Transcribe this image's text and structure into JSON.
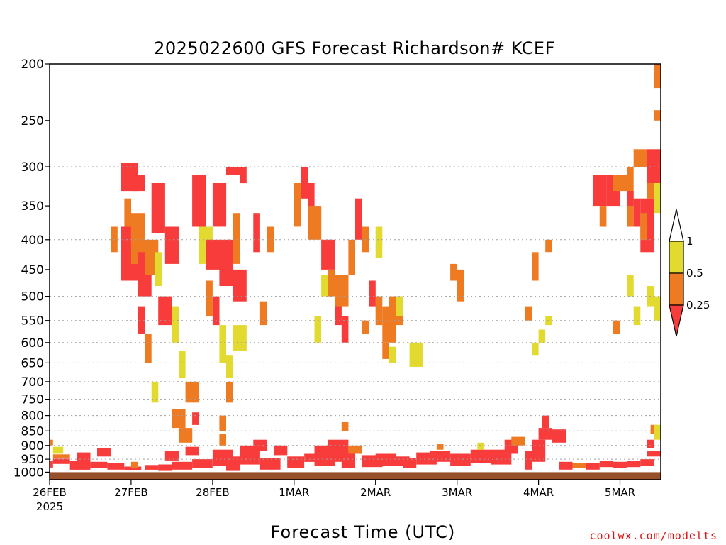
{
  "colors": {
    "red": "#f83c3c",
    "orange": "#ee7a22",
    "yellow": "#e2da2e",
    "ground": "#96502a",
    "grid": "#a0a0a0",
    "credit": "#e01010"
  },
  "chart_data": {
    "type": "heatmap",
    "title": "2025022600 GFS Forecast Richardson# KCEF",
    "xlabel": "Forecast Time (UTC)",
    "ylabel": "",
    "source": "coolwx.com/modelts",
    "x_ticks": [
      {
        "hour": 0,
        "label": "26FEB",
        "sublabel": "2025"
      },
      {
        "hour": 24,
        "label": "27FEB",
        "sublabel": ""
      },
      {
        "hour": 48,
        "label": "28FEB",
        "sublabel": ""
      },
      {
        "hour": 72,
        "label": "1MAR",
        "sublabel": ""
      },
      {
        "hour": 96,
        "label": "2MAR",
        "sublabel": ""
      },
      {
        "hour": 120,
        "label": "3MAR",
        "sublabel": ""
      },
      {
        "hour": 144,
        "label": "4MAR",
        "sublabel": ""
      },
      {
        "hour": 168,
        "label": "5MAR",
        "sublabel": ""
      }
    ],
    "x_range_hours": [
      0,
      180
    ],
    "y_axis": "pressure (hPa), reversed",
    "y_range": [
      1030,
      200
    ],
    "y_ticks": [
      200,
      250,
      300,
      350,
      400,
      450,
      500,
      550,
      600,
      650,
      700,
      750,
      800,
      850,
      900,
      950,
      1000
    ],
    "y_gridlines": [
      300,
      400,
      500,
      550,
      600,
      650,
      700,
      750,
      800,
      850,
      900,
      950
    ],
    "grid": true,
    "legend": {
      "placement": "right",
      "levels": [
        {
          "label": "1",
          "value": 1
        },
        {
          "label": "0.5",
          "value": 0.5
        },
        {
          "label": "0.25",
          "value": 0.25
        }
      ],
      "bins": [
        {
          "range": "> 1",
          "color": "#ffffff"
        },
        {
          "range": "0.5 – 1",
          "color": "#e2da2e"
        },
        {
          "range": "0.25 – 0.5",
          "color": "#ee7a22"
        },
        {
          "range": "< 0.25",
          "color": "#f83c3c"
        }
      ]
    },
    "cells": [
      [
        0,
        0,
        982,
        956,
        "red"
      ],
      [
        1,
        6,
        968,
        948,
        "red"
      ],
      [
        1,
        6,
        945,
        932,
        "orange"
      ],
      [
        0,
        1,
        900,
        880,
        "orange"
      ],
      [
        1,
        4,
        930,
        905,
        "yellow"
      ],
      [
        6,
        12,
        990,
        955,
        "red"
      ],
      [
        8,
        12,
        955,
        925,
        "red"
      ],
      [
        12,
        17,
        985,
        960,
        "red"
      ],
      [
        14,
        18,
        940,
        910,
        "red"
      ],
      [
        17,
        22,
        990,
        965,
        "red"
      ],
      [
        22,
        27,
        992,
        978,
        "red"
      ],
      [
        24,
        26,
        985,
        960,
        "orange"
      ],
      [
        28,
        32,
        990,
        972,
        "red"
      ],
      [
        32,
        36,
        995,
        970,
        "red"
      ],
      [
        34,
        38,
        955,
        920,
        "red"
      ],
      [
        36,
        42,
        990,
        960,
        "red"
      ],
      [
        40,
        44,
        935,
        905,
        "red"
      ],
      [
        42,
        48,
        985,
        950,
        "red"
      ],
      [
        48,
        54,
        975,
        915,
        "red"
      ],
      [
        52,
        56,
        995,
        940,
        "red"
      ],
      [
        56,
        62,
        970,
        900,
        "red"
      ],
      [
        60,
        64,
        920,
        880,
        "red"
      ],
      [
        62,
        68,
        990,
        945,
        "red"
      ],
      [
        66,
        70,
        935,
        900,
        "red"
      ],
      [
        70,
        75,
        985,
        940,
        "red"
      ],
      [
        75,
        78,
        960,
        930,
        "red"
      ],
      [
        78,
        84,
        975,
        900,
        "red"
      ],
      [
        82,
        88,
        960,
        880,
        "red"
      ],
      [
        86,
        90,
        985,
        920,
        "red"
      ],
      [
        88,
        92,
        930,
        900,
        "orange"
      ],
      [
        92,
        98,
        980,
        935,
        "red"
      ],
      [
        96,
        102,
        975,
        930,
        "red"
      ],
      [
        100,
        106,
        975,
        940,
        "red"
      ],
      [
        104,
        108,
        985,
        945,
        "red"
      ],
      [
        108,
        114,
        970,
        925,
        "red"
      ],
      [
        112,
        118,
        960,
        920,
        "red"
      ],
      [
        114,
        116,
        915,
        895,
        "orange"
      ],
      [
        118,
        124,
        975,
        930,
        "red"
      ],
      [
        124,
        130,
        965,
        915,
        "red"
      ],
      [
        126,
        128,
        915,
        890,
        "yellow"
      ],
      [
        130,
        136,
        970,
        915,
        "red"
      ],
      [
        134,
        138,
        930,
        880,
        "red"
      ],
      [
        136,
        140,
        900,
        870,
        "orange"
      ],
      [
        140,
        142,
        990,
        920,
        "red"
      ],
      [
        142,
        146,
        960,
        880,
        "red"
      ],
      [
        144,
        148,
        880,
        840,
        "red"
      ],
      [
        145,
        147,
        840,
        800,
        "red"
      ],
      [
        148,
        152,
        890,
        845,
        "red"
      ],
      [
        150,
        154,
        990,
        960,
        "red"
      ],
      [
        154,
        158,
        985,
        965,
        "orange"
      ],
      [
        158,
        162,
        990,
        965,
        "red"
      ],
      [
        162,
        166,
        980,
        955,
        "red"
      ],
      [
        166,
        170,
        985,
        960,
        "red"
      ],
      [
        170,
        174,
        980,
        955,
        "red"
      ],
      [
        174,
        178,
        975,
        950,
        "red"
      ],
      [
        176,
        180,
        940,
        920,
        "red"
      ],
      [
        177,
        179,
        860,
        830,
        "orange"
      ],
      [
        178,
        180,
        880,
        830,
        "yellow"
      ],
      [
        176,
        178,
        910,
        880,
        "red"
      ],
      [
        21,
        26,
        330,
        295,
        "red"
      ],
      [
        24,
        28,
        330,
        310,
        "red"
      ],
      [
        22,
        24,
        400,
        340,
        "orange"
      ],
      [
        18,
        20,
        420,
        380,
        "orange"
      ],
      [
        21,
        26,
        470,
        380,
        "red"
      ],
      [
        24,
        28,
        440,
        360,
        "orange"
      ],
      [
        26,
        30,
        500,
        420,
        "red"
      ],
      [
        28,
        32,
        460,
        400,
        "orange"
      ],
      [
        26,
        28,
        580,
        520,
        "red"
      ],
      [
        28,
        30,
        650,
        580,
        "orange"
      ],
      [
        30,
        34,
        390,
        320,
        "red"
      ],
      [
        32,
        36,
        560,
        500,
        "red"
      ],
      [
        31,
        33,
        480,
        420,
        "yellow"
      ],
      [
        34,
        38,
        440,
        380,
        "red"
      ],
      [
        36,
        38,
        600,
        520,
        "yellow"
      ],
      [
        38,
        40,
        690,
        620,
        "yellow"
      ],
      [
        30,
        32,
        760,
        700,
        "yellow"
      ],
      [
        36,
        40,
        840,
        780,
        "orange"
      ],
      [
        38,
        42,
        890,
        840,
        "orange"
      ],
      [
        42,
        46,
        380,
        310,
        "red"
      ],
      [
        44,
        48,
        440,
        380,
        "yellow"
      ],
      [
        46,
        48,
        540,
        470,
        "orange"
      ],
      [
        48,
        50,
        560,
        500,
        "red"
      ],
      [
        50,
        54,
        480,
        400,
        "red"
      ],
      [
        50,
        52,
        650,
        560,
        "yellow"
      ],
      [
        52,
        54,
        760,
        700,
        "orange"
      ],
      [
        54,
        56,
        440,
        360,
        "orange"
      ],
      [
        54,
        58,
        510,
        450,
        "red"
      ],
      [
        52,
        56,
        310,
        300,
        "red"
      ],
      [
        56,
        58,
        320,
        300,
        "red"
      ],
      [
        48,
        52,
        380,
        320,
        "red"
      ],
      [
        46,
        50,
        450,
        400,
        "red"
      ],
      [
        50,
        52,
        850,
        800,
        "orange"
      ],
      [
        50,
        52,
        900,
        860,
        "orange"
      ],
      [
        60,
        62,
        420,
        360,
        "red"
      ],
      [
        62,
        64,
        560,
        510,
        "orange"
      ],
      [
        64,
        66,
        420,
        380,
        "orange"
      ],
      [
        54,
        58,
        620,
        560,
        "yellow"
      ],
      [
        52,
        54,
        690,
        630,
        "yellow"
      ],
      [
        40,
        44,
        760,
        700,
        "orange"
      ],
      [
        42,
        44,
        830,
        790,
        "red"
      ],
      [
        72,
        74,
        380,
        320,
        "orange"
      ],
      [
        74,
        76,
        340,
        300,
        "red"
      ],
      [
        76,
        78,
        360,
        320,
        "red"
      ],
      [
        76,
        80,
        400,
        350,
        "orange"
      ],
      [
        80,
        84,
        450,
        400,
        "red"
      ],
      [
        82,
        84,
        500,
        450,
        "orange"
      ],
      [
        84,
        86,
        560,
        500,
        "red"
      ],
      [
        84,
        88,
        520,
        460,
        "orange"
      ],
      [
        86,
        88,
        600,
        540,
        "red"
      ],
      [
        88,
        90,
        460,
        400,
        "orange"
      ],
      [
        90,
        92,
        400,
        340,
        "red"
      ],
      [
        92,
        94,
        420,
        380,
        "orange"
      ],
      [
        78,
        80,
        600,
        540,
        "yellow"
      ],
      [
        80,
        82,
        500,
        460,
        "yellow"
      ],
      [
        86,
        88,
        850,
        820,
        "orange"
      ],
      [
        96,
        98,
        560,
        500,
        "orange"
      ],
      [
        98,
        102,
        600,
        520,
        "orange"
      ],
      [
        100,
        104,
        560,
        500,
        "orange"
      ],
      [
        98,
        100,
        640,
        600,
        "orange"
      ],
      [
        100,
        102,
        650,
        610,
        "yellow"
      ],
      [
        102,
        104,
        540,
        500,
        "yellow"
      ],
      [
        96,
        98,
        430,
        380,
        "yellow"
      ],
      [
        92,
        94,
        580,
        550,
        "orange"
      ],
      [
        94,
        96,
        520,
        470,
        "red"
      ],
      [
        106,
        110,
        660,
        600,
        "yellow"
      ],
      [
        118,
        120,
        470,
        440,
        "orange"
      ],
      [
        120,
        122,
        510,
        450,
        "orange"
      ],
      [
        140,
        142,
        550,
        520,
        "orange"
      ],
      [
        142,
        144,
        470,
        420,
        "orange"
      ],
      [
        142,
        144,
        630,
        600,
        "yellow"
      ],
      [
        144,
        146,
        600,
        570,
        "yellow"
      ],
      [
        146,
        148,
        420,
        400,
        "orange"
      ],
      [
        146,
        148,
        560,
        540,
        "yellow"
      ],
      [
        160,
        164,
        350,
        310,
        "red"
      ],
      [
        162,
        164,
        380,
        350,
        "orange"
      ],
      [
        164,
        168,
        350,
        310,
        "red"
      ],
      [
        166,
        170,
        330,
        310,
        "orange"
      ],
      [
        170,
        172,
        380,
        300,
        "orange"
      ],
      [
        172,
        176,
        300,
        280,
        "orange"
      ],
      [
        174,
        178,
        420,
        340,
        "red"
      ],
      [
        176,
        178,
        340,
        300,
        "orange"
      ],
      [
        176,
        180,
        320,
        280,
        "red"
      ],
      [
        178,
        180,
        360,
        320,
        "yellow"
      ],
      [
        178,
        180,
        250,
        240,
        "orange"
      ],
      [
        178,
        180,
        220,
        200,
        "orange"
      ],
      [
        172,
        174,
        380,
        340,
        "red"
      ],
      [
        170,
        172,
        350,
        330,
        "red"
      ],
      [
        174,
        176,
        400,
        360,
        "orange"
      ],
      [
        166,
        168,
        580,
        550,
        "orange"
      ],
      [
        172,
        174,
        560,
        520,
        "yellow"
      ],
      [
        170,
        172,
        500,
        460,
        "yellow"
      ],
      [
        178,
        180,
        550,
        500,
        "yellow"
      ],
      [
        176,
        178,
        520,
        480,
        "yellow"
      ]
    ]
  }
}
